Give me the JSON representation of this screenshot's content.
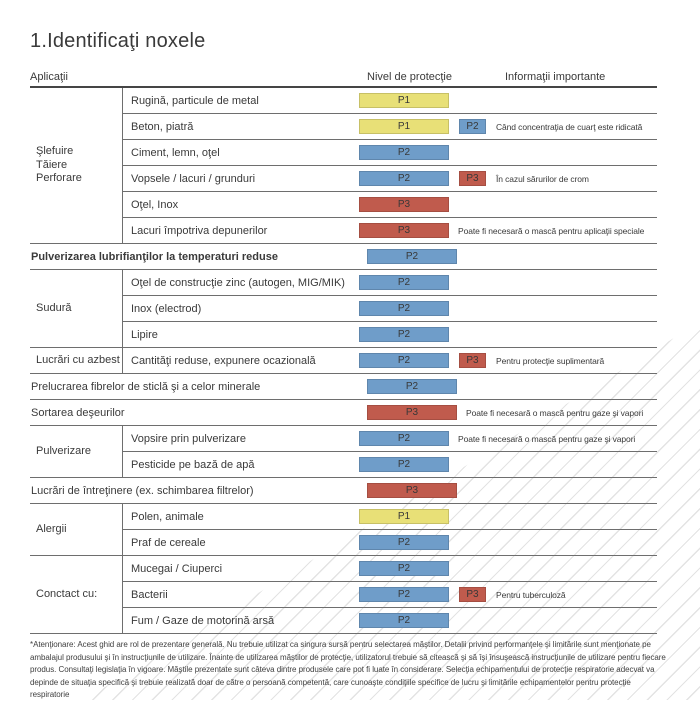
{
  "page": {
    "title": "1.Identificaţi noxele"
  },
  "table": {
    "headers": {
      "applications": "Aplicaţii",
      "protection": "Nivel de protecţie",
      "info": "Informaţii importante"
    },
    "badge_colors": {
      "P1": "#e8e077",
      "P2": "#6f9dc9",
      "P3": "#c05b4d"
    },
    "groups": [
      {
        "label_lines": [
          "Şlefuire",
          "Tăiere",
          "Perforare"
        ],
        "rows": [
          {
            "item": "Rugină, particule de metal",
            "badge": "P1"
          },
          {
            "item": "Beton, piatră",
            "badge": "P1",
            "extra": "P2",
            "note": "Când concentraţia de cuarţ este ridicată"
          },
          {
            "item": "Ciment, lemn, oţel",
            "badge": "P2"
          },
          {
            "item": "Vopsele / lacuri / grunduri",
            "badge": "P2",
            "extra": "P3",
            "note": "În cazul sărurilor de crom"
          },
          {
            "item": "Oţel, Inox",
            "badge": "P3"
          },
          {
            "item": "Lacuri împotriva depunerilor",
            "badge": "P3",
            "note": "Poate fi necesară o mască pentru aplicaţii speciale"
          }
        ]
      },
      {
        "label_lines": [],
        "rows": [
          {
            "item": "Pulverizarea lubrifianţilor la temperaturi reduse",
            "badge": "P2",
            "bold": true
          }
        ]
      },
      {
        "label_lines": [
          "Sudură"
        ],
        "rows": [
          {
            "item": "Oţel de construcţie zinc (autogen, MIG/MIK)",
            "badge": "P2"
          },
          {
            "item": "Inox (electrod)",
            "badge": "P2"
          },
          {
            "item": "Lipire",
            "badge": "P2"
          }
        ]
      },
      {
        "label_lines": [
          "Lucrări cu azbest"
        ],
        "rows": [
          {
            "item": "Cantităţi reduse, expunere ocazională",
            "badge": "P2",
            "extra": "P3",
            "note": "Pentru protecţie suplimentară"
          }
        ]
      },
      {
        "label_lines": [],
        "rows": [
          {
            "item": "Prelucrarea fibrelor de sticlă şi a celor minerale",
            "badge": "P2"
          }
        ]
      },
      {
        "label_lines": [],
        "rows": [
          {
            "item": "Sortarea deşeurilor",
            "badge": "P3",
            "note": "Poate fi necesară o mască pentru gaze şi vapori"
          }
        ]
      },
      {
        "label_lines": [
          "Pulverizare"
        ],
        "rows": [
          {
            "item": "Vopsire prin pulverizare",
            "badge": "P2",
            "note": "Poate fi necesară o mască pentru gaze şi vapori"
          },
          {
            "item": "Pesticide pe bază de apă",
            "badge": "P2"
          }
        ]
      },
      {
        "label_lines": [],
        "rows": [
          {
            "item": "Lucrări de întreţinere (ex. schimbarea filtrelor)",
            "badge": "P3"
          }
        ]
      },
      {
        "label_lines": [
          "Alergii"
        ],
        "rows": [
          {
            "item": "Polen, animale",
            "badge": "P1"
          },
          {
            "item": "Praf de cereale",
            "badge": "P2"
          }
        ]
      },
      {
        "label_lines": [
          "Conctact cu:"
        ],
        "rows": [
          {
            "item": "Mucegai / Ciuperci",
            "badge": "P2"
          },
          {
            "item": "Bacterii",
            "badge": "P2",
            "extra": "P3",
            "note": "Pentru tuberculoză"
          },
          {
            "item": "Fum / Gaze de motorină arsă",
            "badge": "P2"
          }
        ]
      }
    ]
  },
  "footnote": "*Atenţionare: Acest ghid are rol de prezentare generală. Nu trebuie utilizat ca singura sursă pentru selectarea măştilor. Detalii privind performanţele şi limitările sunt menţionate pe ambalajul produsului şi în instrucţiunile de utilizare. Înainte de utilizarea măştilor de protecţie, utilizatorul trebuie să citească şi să îşi însuşească instrucţiunile de utilizare pentru fiecare produs. Consultaţi legislaţia în vigoare. Măştile prezentate sunt câteva dintre produsele care pot fi luate în considerare. Selecţia echipamentului de protecţie respiratorie adecvat va depinde de situaţia specifică şi trebuie realizată doar de către o persoană competentă, care cunoaşte condiţiile specifice de lucru şi limitările echipamentelor pentru protecţie respiratorie"
}
